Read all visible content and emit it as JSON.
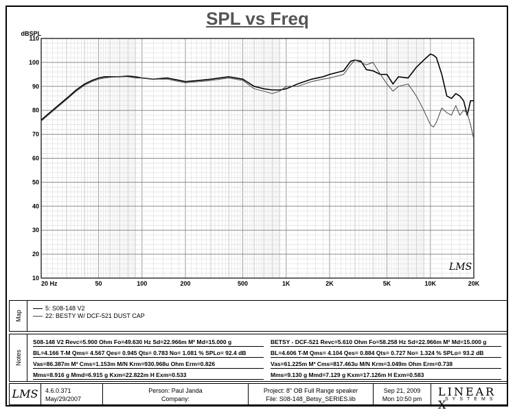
{
  "chart_data": {
    "type": "line",
    "title": "SPL vs Freq",
    "ylabel": "dBSPL",
    "xscale": "log",
    "xlim": [
      20,
      20000
    ],
    "ylim": [
      10,
      110
    ],
    "yticks": [
      10,
      20,
      30,
      40,
      50,
      60,
      70,
      80,
      90,
      100,
      110
    ],
    "xticks": [
      {
        "v": 20,
        "label": "20 Hz"
      },
      {
        "v": 50,
        "label": "50"
      },
      {
        "v": 100,
        "label": "100"
      },
      {
        "v": 200,
        "label": "200"
      },
      {
        "v": 500,
        "label": "500"
      },
      {
        "v": 1000,
        "label": "1K"
      },
      {
        "v": 2000,
        "label": "2K"
      },
      {
        "v": 5000,
        "label": "5K"
      },
      {
        "v": 10000,
        "label": "10K"
      },
      {
        "v": 20000,
        "label": "20K"
      }
    ],
    "watermark": "LMS",
    "series": [
      {
        "name": "5: S08-148 V2",
        "color": "#000000",
        "x": [
          20,
          25,
          30,
          35,
          40,
          45,
          50,
          55,
          60,
          70,
          80,
          90,
          100,
          120,
          150,
          200,
          250,
          300,
          400,
          500,
          600,
          700,
          800,
          900,
          1000,
          1200,
          1500,
          1800,
          2000,
          2500,
          2800,
          3000,
          3300,
          3600,
          4000,
          4500,
          5000,
          5500,
          6000,
          7000,
          8000,
          9000,
          10000,
          10500,
          11000,
          12000,
          13000,
          14000,
          15000,
          16000,
          17000,
          18000,
          19000,
          20000
        ],
        "y": [
          76,
          81,
          85,
          88.5,
          91,
          92.5,
          93.5,
          94,
          94,
          94,
          94.3,
          94,
          93.5,
          93,
          93.5,
          92,
          92.5,
          93,
          94,
          93,
          90,
          89,
          88.5,
          88.5,
          89,
          91,
          93,
          94,
          95,
          96.5,
          100.5,
          101,
          100.5,
          97,
          96.5,
          95,
          95,
          91,
          94,
          93.5,
          98,
          101,
          103.5,
          103,
          102,
          95,
          86,
          85,
          87,
          86,
          84,
          78,
          84,
          84
        ]
      },
      {
        "name": "22: BESTY W/ DCF-521 DUST CAP",
        "color": "#444444",
        "x": [
          20,
          25,
          30,
          35,
          40,
          45,
          50,
          55,
          60,
          70,
          80,
          90,
          100,
          120,
          150,
          200,
          250,
          300,
          400,
          500,
          600,
          700,
          800,
          900,
          1000,
          1200,
          1500,
          1800,
          2000,
          2500,
          2800,
          3000,
          3300,
          3600,
          4000,
          4500,
          5000,
          5500,
          6000,
          7000,
          8000,
          9000,
          10000,
          10500,
          11000,
          12000,
          13000,
          14000,
          15000,
          16000,
          17000,
          18000,
          19000,
          20000
        ],
        "y": [
          75.5,
          80.5,
          84.5,
          88,
          90.5,
          92,
          93,
          93.5,
          93.8,
          94,
          94,
          93.5,
          93.5,
          93,
          93,
          91.5,
          92,
          92.5,
          93.5,
          92.5,
          89,
          88,
          87,
          88,
          90,
          90,
          92,
          93,
          93.5,
          95,
          99,
          101,
          100,
          99,
          100,
          95,
          91,
          88,
          90,
          91,
          86,
          80,
          74,
          73,
          75,
          81,
          79,
          78,
          82,
          78,
          80,
          79,
          74,
          68
        ]
      }
    ]
  },
  "legend": {
    "section_label": "Map",
    "items": [
      "5: S08-148 V2",
      "22: BESTY W/ DCF-521 DUST CAP"
    ]
  },
  "notes": {
    "section_label": "Notes",
    "left": [
      "S08-148 V2 Revc=5.900 Ohm  Fo=49.630 Hz  Sd=22.966m M² Md=15.000 g",
      "BL=4.166 T-M  Qms= 4.567  Qes= 0.945  Qts= 0.783  No= 1.081 %  SPLo= 92.4 dB",
      "Vas=86.387m M³  Cms=1.153m M/N  Krm=930.968u Ohm  Erm=0.826",
      "Mms=8.916 g  Mmd=6.915 g  Kxm=22.822m H  Exm=0.533"
    ],
    "right": [
      "BETSY - DCF-521 Revc=5.610 Ohm  Fo=58.258 Hz  Sd=22.966m M² Md=15.000 g",
      "BL=4.606 T-M  Qms= 4.104  Qes= 0.884  Qts= 0.727  No= 1.324 %  SPLo= 93.2 dB",
      "Vas=61.225m M³  Cms=817.463u M/N  Krm=3.049m Ohm  Erm=0.738",
      "Mms=9.130 g  Mmd=7.129 g  Kxm=17.126m H  Exm=0.583"
    ]
  },
  "footer": {
    "logo": "LMS",
    "version": "4.6.0.371",
    "version_date": "May/29/2007",
    "person": "Person: Paul Janda",
    "company": "Company:",
    "project": "Project: 8\" OB Full Range speaker",
    "file": "File: S08-148_Betsy_SERIES.lib",
    "date": "Sep 21, 2009",
    "time": "Mon 10:50 pm",
    "brand": "LINEAR X",
    "brand_sub": "SYSTEMS"
  }
}
